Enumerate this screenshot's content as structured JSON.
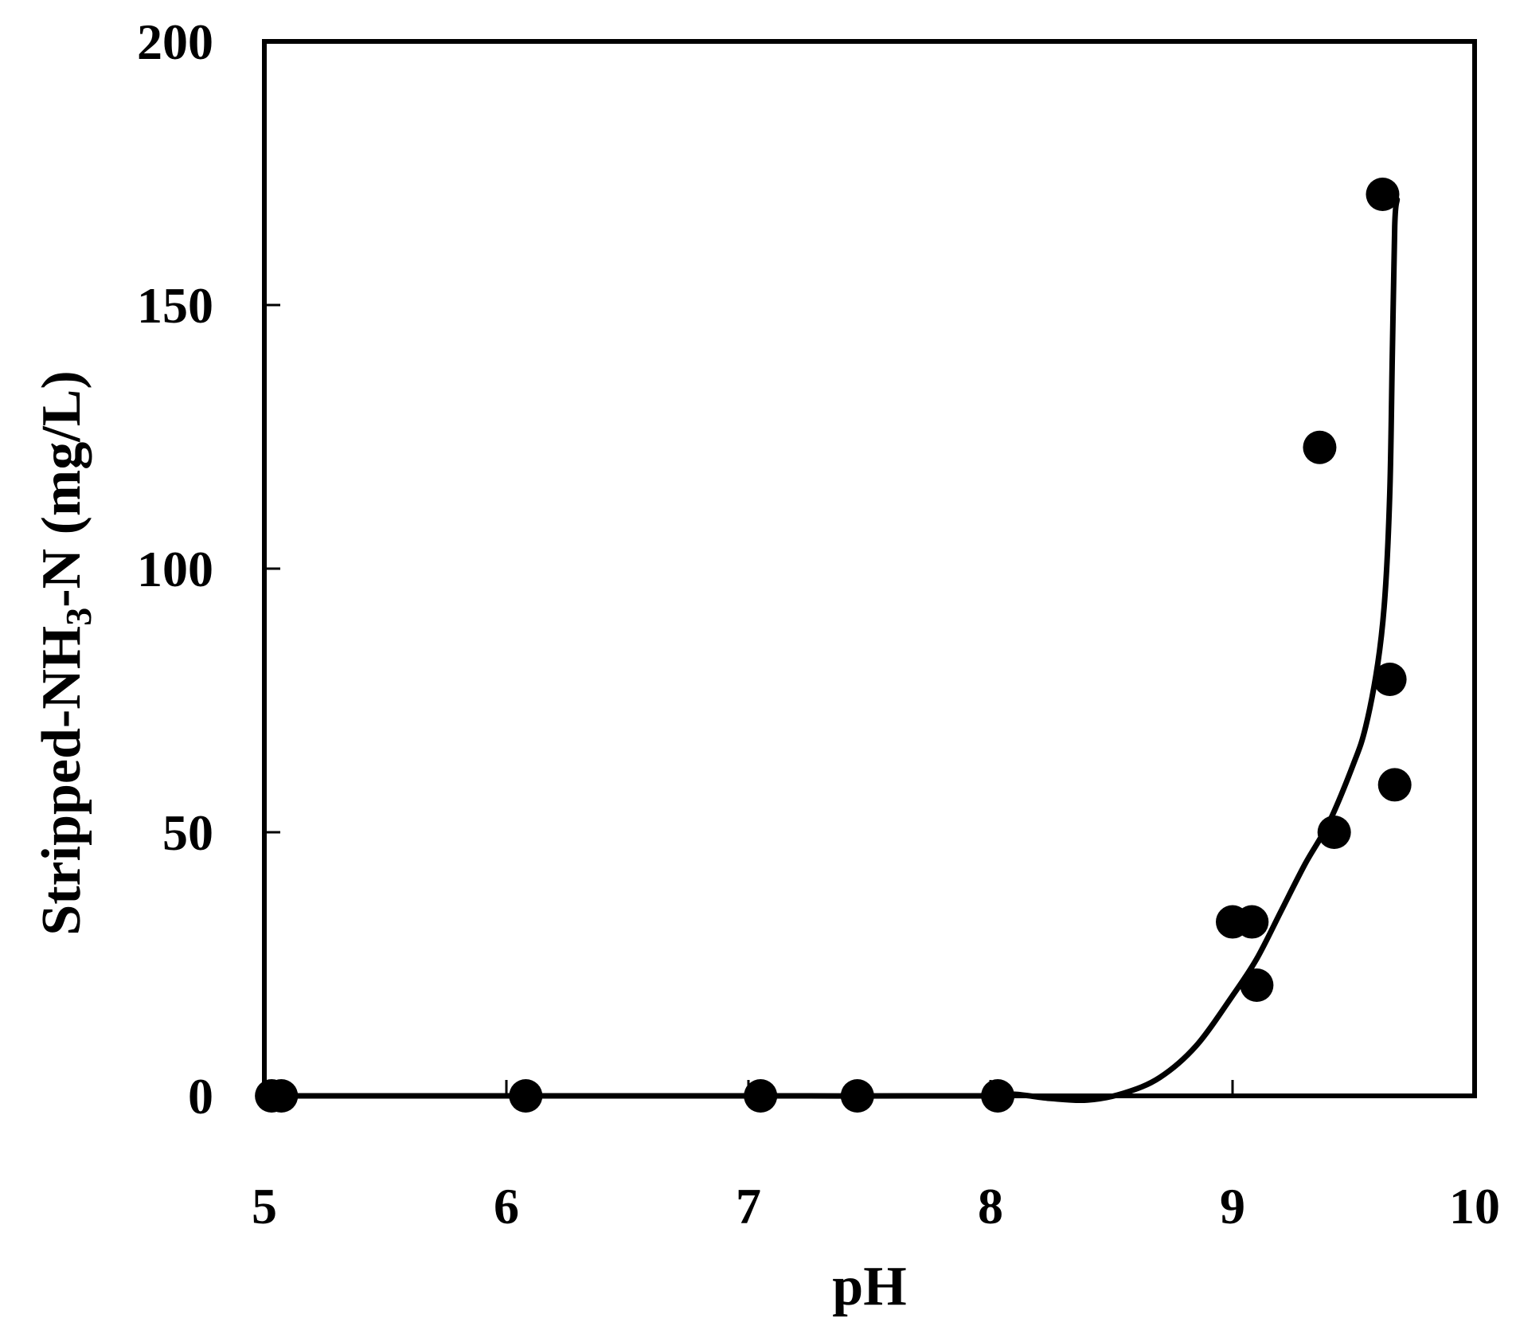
{
  "chart_data": {
    "type": "scatter",
    "title": "",
    "xlabel": "pH",
    "ylabel": {
      "main": "Stripped-NH",
      "sub": "3",
      "tail": "-N (mg/L)"
    },
    "xlim": [
      5,
      10
    ],
    "ylim": [
      0,
      200
    ],
    "x_ticks": [
      5,
      6,
      7,
      8,
      9,
      10
    ],
    "x_tick_labels": [
      "5",
      "6",
      "7",
      "8",
      "9",
      "10"
    ],
    "y_ticks": [
      0,
      50,
      100,
      150,
      200
    ],
    "y_tick_labels": [
      "0",
      "50",
      "100",
      "150",
      "200"
    ],
    "grid": false,
    "legend": "none",
    "colors": {
      "marker": "#000000",
      "line": "#000000"
    },
    "series": [
      {
        "kind": "points",
        "x": [
          5.03,
          5.07,
          6.08,
          7.05,
          7.45,
          8.03,
          9.0,
          9.08,
          9.1,
          9.36,
          9.42,
          9.62,
          9.65,
          9.67
        ],
        "y": [
          0,
          0,
          0,
          0,
          0,
          0,
          33,
          33,
          21,
          123,
          50,
          171,
          79,
          59
        ]
      },
      {
        "kind": "fit-line",
        "x": [
          5.0,
          6.0,
          7.0,
          8.0,
          8.1,
          8.25,
          8.4,
          8.55,
          8.7,
          8.85,
          9.0,
          9.1,
          9.2,
          9.3,
          9.4,
          9.5,
          9.55,
          9.6,
          9.63,
          9.65,
          9.66,
          9.67,
          9.68
        ],
        "y": [
          0,
          0,
          0,
          0,
          0.3,
          -0.5,
          -0.8,
          0.5,
          3.5,
          9.5,
          19,
          26,
          35,
          44,
          52,
          63,
          70,
          82,
          95,
          115,
          140,
          165,
          170
        ]
      }
    ]
  }
}
